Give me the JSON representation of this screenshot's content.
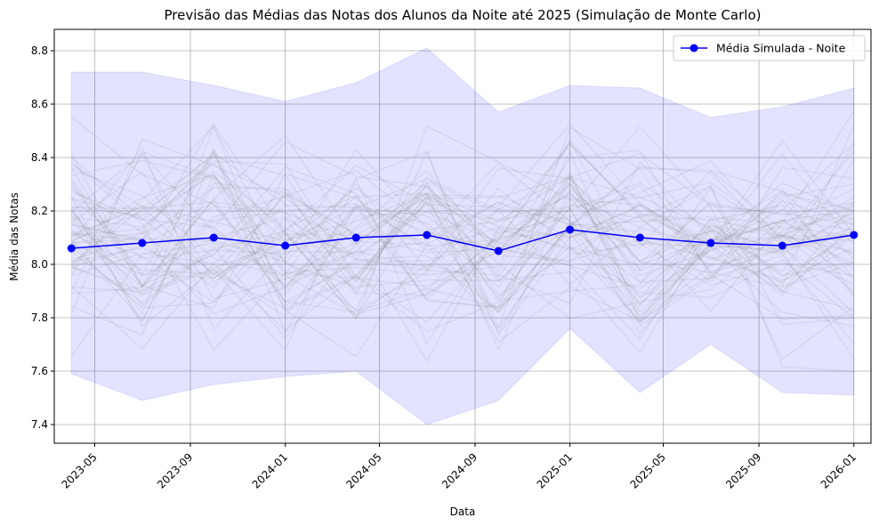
{
  "chart_data": {
    "type": "line",
    "title": "Previsão das Médias das Notas dos Alunos da Noite até 2025 (Simulação de Monte Carlo)",
    "xlabel": "Data",
    "ylabel": "Média das Notas",
    "x": [
      "2023-04-01",
      "2023-07-01",
      "2023-10-01",
      "2024-01-01",
      "2024-04-01",
      "2024-07-01",
      "2024-10-01",
      "2025-01-01",
      "2025-04-01",
      "2025-07-01",
      "2025-10-01",
      "2026-01-01"
    ],
    "x_ticks": [
      "2023-05",
      "2023-09",
      "2024-01",
      "2024-05",
      "2024-09",
      "2025-01",
      "2025-05",
      "2025-09",
      "2026-01"
    ],
    "y_ticks": [
      "7.4",
      "7.6",
      "7.8",
      "8.0",
      "8.2",
      "8.4",
      "8.6",
      "8.8"
    ],
    "xlim": [
      "2023-03-10",
      "2026-01-23"
    ],
    "ylim": [
      7.33,
      8.88
    ],
    "grid": true,
    "legend_position": "top-right",
    "series": [
      {
        "name": "Média Simulada - Noite",
        "color": "#0000ff",
        "marker": "circle",
        "values": [
          8.06,
          8.08,
          8.1,
          8.07,
          8.1,
          8.11,
          8.05,
          8.13,
          8.1,
          8.08,
          8.07,
          8.11
        ]
      }
    ],
    "band": {
      "color": "#0000ff",
      "upper": [
        8.72,
        8.72,
        8.67,
        8.61,
        8.68,
        8.81,
        8.57,
        8.67,
        8.66,
        8.55,
        8.59,
        8.66
      ],
      "lower": [
        7.59,
        7.49,
        7.55,
        7.58,
        7.6,
        7.4,
        7.49,
        7.76,
        7.52,
        7.7,
        7.52,
        7.51
      ]
    },
    "simulation_paths": {
      "color": "#808080",
      "count": 60
    }
  }
}
